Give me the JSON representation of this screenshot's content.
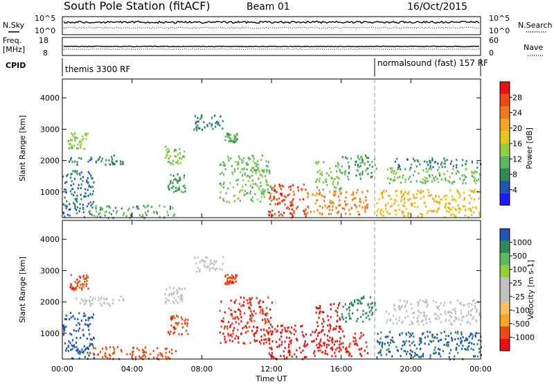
{
  "header": {
    "title": "South Pole Station (fitACF)",
    "beam": "Beam 01",
    "date": "16/Oct/2015"
  },
  "aux_panels": {
    "nsky_label": "N.Sky",
    "nsearch_label": "N.Search",
    "nsky_ticks": [
      "10^5",
      "10^0"
    ],
    "nsearch_ticks": [
      "10^5",
      "10^0"
    ],
    "freq_label_1": "Freq.",
    "freq_label_2": "[MHz]",
    "freq_ticks": [
      "18",
      "8"
    ],
    "nave_label": "Nave",
    "nave_ticks": [
      "60",
      "0"
    ],
    "cpid_label": "CPID",
    "cpid_segments": [
      {
        "label": "themis 3300 RF",
        "start_hour": 0
      },
      {
        "label": "normalsound (fast) 157 RF",
        "start_hour": 18
      }
    ]
  },
  "colors": {
    "power": [
      "#1a1aff",
      "#2255b0",
      "#2e8b57",
      "#5fb85f",
      "#8fd23a",
      "#e6c619",
      "#f5a623",
      "#f27a1a",
      "#ee4a10",
      "#e81010"
    ],
    "velocity": [
      "#e81010",
      "#ee4a10",
      "#f5a623",
      "#f7c060",
      "#c0c0c0",
      "#c0c0c0",
      "#8fd23a",
      "#5fb85f",
      "#2e8b57",
      "#2255b0"
    ],
    "ground_scatter": "#9a9a9a"
  },
  "chart_data": [
    {
      "type": "heatmap",
      "name": "power",
      "ylabel": "Slant Range [km]",
      "xlabel": "Time UT",
      "x_ticks": [
        "00:00",
        "04:00",
        "08:00",
        "12:00",
        "16:00",
        "20:00",
        "00:00"
      ],
      "y_ticks": [
        "1000",
        "2000",
        "3000",
        "4000"
      ],
      "ylim": [
        180,
        4600
      ],
      "xlim_hours": [
        0,
        24
      ],
      "colorbar": {
        "label": "Power [dB]",
        "ticks": [
          "4",
          "8",
          "12",
          "16",
          "20",
          "24",
          "28"
        ],
        "range": [
          0,
          30
        ]
      },
      "echo_bands": [
        {
          "t0": 0.0,
          "t1": 1.8,
          "r0": 200,
          "r1": 1700,
          "v": 6
        },
        {
          "t0": 0.3,
          "t1": 3.5,
          "r0": 1900,
          "r1": 2200,
          "v": 7
        },
        {
          "t0": 0.3,
          "t1": 1.5,
          "r0": 2400,
          "r1": 2900,
          "v": 13
        },
        {
          "t0": 1.5,
          "t1": 6.5,
          "r0": 200,
          "r1": 600,
          "v": 10
        },
        {
          "t0": 5.8,
          "t1": 7.0,
          "r0": 1900,
          "r1": 2500,
          "v": 12
        },
        {
          "t0": 6.0,
          "t1": 7.2,
          "r0": 1000,
          "r1": 1600,
          "v": 9
        },
        {
          "t0": 7.5,
          "t1": 9.2,
          "r0": 3000,
          "r1": 3500,
          "v": 7
        },
        {
          "t0": 9.3,
          "t1": 10.0,
          "r0": 2600,
          "r1": 2900,
          "v": 10
        },
        {
          "t0": 9.0,
          "t1": 12.0,
          "r0": 700,
          "r1": 2200,
          "v": 11
        },
        {
          "t0": 11.8,
          "t1": 14.0,
          "r0": 200,
          "r1": 1300,
          "v": 26
        },
        {
          "t0": 14.0,
          "t1": 17.5,
          "r0": 300,
          "r1": 1100,
          "v": 22
        },
        {
          "t0": 14.5,
          "t1": 16.0,
          "r0": 1100,
          "r1": 2000,
          "v": 12
        },
        {
          "t0": 16.0,
          "t1": 18.0,
          "r0": 1400,
          "r1": 2200,
          "v": 9
        },
        {
          "t0": 18.0,
          "t1": 24.0,
          "r0": 200,
          "r1": 1100,
          "v": 18
        },
        {
          "t0": 18.5,
          "t1": 24.0,
          "r0": 1300,
          "r1": 1800,
          "v": 11
        },
        {
          "t0": 19.0,
          "t1": 24.0,
          "r0": 1800,
          "r1": 2100,
          "v": 7
        }
      ]
    },
    {
      "type": "heatmap",
      "name": "velocity",
      "ylabel": "Slant Range [km]",
      "xlabel": "Time UT",
      "x_ticks": [
        "00:00",
        "04:00",
        "08:00",
        "12:00",
        "16:00",
        "20:00",
        "00:00"
      ],
      "y_ticks": [
        "1000",
        "2000",
        "3000",
        "4000"
      ],
      "ylim": [
        180,
        4600
      ],
      "xlim_hours": [
        0,
        24
      ],
      "colorbar": {
        "label": "Velocity [m s-1]",
        "ticks": [
          "-1000",
          "-500",
          "-100",
          "-25",
          "25",
          "100",
          "500",
          "1000"
        ],
        "range": [
          -1000,
          1000
        ]
      },
      "echo_bands": [
        {
          "t0": 0.0,
          "t1": 1.8,
          "r0": 200,
          "r1": 1700,
          "v": 700
        },
        {
          "t0": 0.3,
          "t1": 3.5,
          "r0": 1900,
          "r1": 2200,
          "v": 0
        },
        {
          "t0": 0.3,
          "t1": 1.5,
          "r0": 2400,
          "r1": 2900,
          "v": -150
        },
        {
          "t0": 1.5,
          "t1": 6.5,
          "r0": 200,
          "r1": 600,
          "v": -120
        },
        {
          "t0": 5.8,
          "t1": 7.0,
          "r0": 1900,
          "r1": 2500,
          "v": 0
        },
        {
          "t0": 6.0,
          "t1": 7.2,
          "r0": 1000,
          "r1": 1600,
          "v": -200
        },
        {
          "t0": 7.5,
          "t1": 9.2,
          "r0": 3000,
          "r1": 3500,
          "v": 0
        },
        {
          "t0": 9.3,
          "t1": 10.0,
          "r0": 2600,
          "r1": 2900,
          "v": -150
        },
        {
          "t0": 9.0,
          "t1": 12.0,
          "r0": 700,
          "r1": 2200,
          "v": -300
        },
        {
          "t0": 11.8,
          "t1": 14.0,
          "r0": 200,
          "r1": 1300,
          "v": -600
        },
        {
          "t0": 14.0,
          "t1": 17.5,
          "r0": 300,
          "r1": 1100,
          "v": -400
        },
        {
          "t0": 14.5,
          "t1": 16.0,
          "r0": 1100,
          "r1": 2000,
          "v": -500
        },
        {
          "t0": 16.0,
          "t1": 18.0,
          "r0": 1400,
          "r1": 2200,
          "v": 150
        },
        {
          "t0": 18.0,
          "t1": 24.0,
          "r0": 200,
          "r1": 1100,
          "v": 300
        },
        {
          "t0": 18.5,
          "t1": 24.0,
          "r0": 1300,
          "r1": 1800,
          "v": 0
        },
        {
          "t0": 19.0,
          "t1": 24.0,
          "r0": 1800,
          "r1": 2100,
          "v": 0
        }
      ]
    }
  ]
}
